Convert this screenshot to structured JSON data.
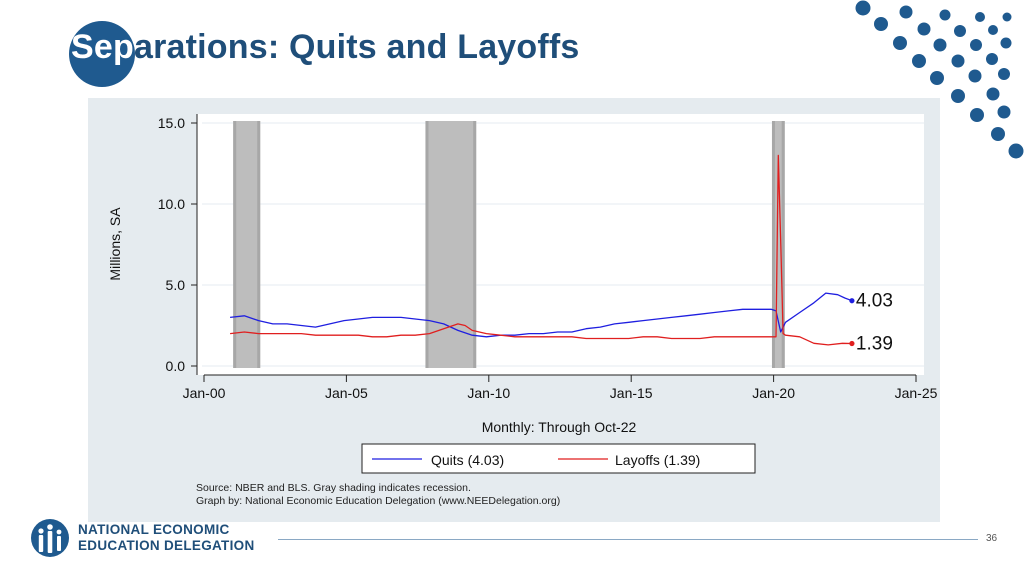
{
  "slide": {
    "title_accent": "Sep",
    "title_rest": "arations: Quits and Layoffs",
    "page_number": "36",
    "accent_color": "#1f5a8f",
    "title_color": "#1f4e79"
  },
  "logo": {
    "line1": "NATIONAL ECONOMIC",
    "line2": "EDUCATION DELEGATION",
    "icon": "people-columns-icon"
  },
  "chart_data": {
    "type": "line",
    "ylabel": "Millions, SA",
    "xlabel": "Monthly: Through Oct-22",
    "ylim": [
      0,
      15
    ],
    "xlim": [
      2000,
      2025
    ],
    "y_ticks": [
      "0.0",
      "5.0",
      "10.0",
      "15.0"
    ],
    "x_ticks": [
      "Jan-00",
      "Jan-05",
      "Jan-10",
      "Jan-15",
      "Jan-20",
      "Jan-25"
    ],
    "grid": true,
    "legend_position": "bottom",
    "recessions": [
      {
        "start": "Mar-01",
        "end": "Nov-01"
      },
      {
        "start": "Dec-07",
        "end": "Jun-09"
      },
      {
        "start": "Feb-20",
        "end": "Apr-20"
      }
    ],
    "source_note": "Source: NBER and BLS. Gray shading indicates recession.",
    "graph_by": "Graph by: National Economic Education Delegation (www.NEEDelegation.org)",
    "series": [
      {
        "name": "Quits (4.03)",
        "color": "#1f1fe0",
        "end_label": "4.03",
        "points": [
          [
            "Dec-00",
            3.0
          ],
          [
            "Jun-01",
            3.1
          ],
          [
            "Dec-01",
            2.8
          ],
          [
            "Jun-02",
            2.6
          ],
          [
            "Dec-02",
            2.6
          ],
          [
            "Jun-03",
            2.5
          ],
          [
            "Dec-03",
            2.4
          ],
          [
            "Jun-04",
            2.6
          ],
          [
            "Dec-04",
            2.8
          ],
          [
            "Jun-05",
            2.9
          ],
          [
            "Dec-05",
            3.0
          ],
          [
            "Jun-06",
            3.0
          ],
          [
            "Dec-06",
            3.0
          ],
          [
            "Jun-07",
            2.9
          ],
          [
            "Dec-07",
            2.8
          ],
          [
            "Jun-08",
            2.6
          ],
          [
            "Dec-08",
            2.2
          ],
          [
            "Jun-09",
            1.9
          ],
          [
            "Dec-09",
            1.8
          ],
          [
            "Jun-10",
            1.9
          ],
          [
            "Dec-10",
            1.9
          ],
          [
            "Jun-11",
            2.0
          ],
          [
            "Dec-11",
            2.0
          ],
          [
            "Jun-12",
            2.1
          ],
          [
            "Dec-12",
            2.1
          ],
          [
            "Jun-13",
            2.3
          ],
          [
            "Dec-13",
            2.4
          ],
          [
            "Jun-14",
            2.6
          ],
          [
            "Dec-14",
            2.7
          ],
          [
            "Jun-15",
            2.8
          ],
          [
            "Dec-15",
            2.9
          ],
          [
            "Jun-16",
            3.0
          ],
          [
            "Dec-16",
            3.1
          ],
          [
            "Jun-17",
            3.2
          ],
          [
            "Dec-17",
            3.3
          ],
          [
            "Jun-18",
            3.4
          ],
          [
            "Dec-18",
            3.5
          ],
          [
            "Jun-19",
            3.5
          ],
          [
            "Dec-19",
            3.5
          ],
          [
            "Feb-20",
            3.4
          ],
          [
            "Apr-20",
            2.1
          ],
          [
            "Jun-20",
            2.7
          ],
          [
            "Dec-20",
            3.3
          ],
          [
            "Jun-21",
            3.9
          ],
          [
            "Nov-21",
            4.5
          ],
          [
            "Apr-22",
            4.4
          ],
          [
            "Jul-22",
            4.2
          ],
          [
            "Oct-22",
            4.03
          ]
        ]
      },
      {
        "name": "Layoffs (1.39)",
        "color": "#e01f1f",
        "end_label": "1.39",
        "points": [
          [
            "Dec-00",
            2.0
          ],
          [
            "Jun-01",
            2.1
          ],
          [
            "Dec-01",
            2.0
          ],
          [
            "Jun-02",
            2.0
          ],
          [
            "Dec-02",
            2.0
          ],
          [
            "Jun-03",
            2.0
          ],
          [
            "Dec-03",
            1.9
          ],
          [
            "Jun-04",
            1.9
          ],
          [
            "Dec-04",
            1.9
          ],
          [
            "Jun-05",
            1.9
          ],
          [
            "Dec-05",
            1.8
          ],
          [
            "Jun-06",
            1.8
          ],
          [
            "Dec-06",
            1.9
          ],
          [
            "Jun-07",
            1.9
          ],
          [
            "Dec-07",
            2.0
          ],
          [
            "Jun-08",
            2.3
          ],
          [
            "Dec-08",
            2.6
          ],
          [
            "Mar-09",
            2.5
          ],
          [
            "Jun-09",
            2.2
          ],
          [
            "Dec-09",
            2.0
          ],
          [
            "Jun-10",
            1.9
          ],
          [
            "Dec-10",
            1.8
          ],
          [
            "Jun-11",
            1.8
          ],
          [
            "Dec-11",
            1.8
          ],
          [
            "Jun-12",
            1.8
          ],
          [
            "Dec-12",
            1.8
          ],
          [
            "Jun-13",
            1.7
          ],
          [
            "Dec-13",
            1.7
          ],
          [
            "Jun-14",
            1.7
          ],
          [
            "Dec-14",
            1.7
          ],
          [
            "Jun-15",
            1.8
          ],
          [
            "Dec-15",
            1.8
          ],
          [
            "Jun-16",
            1.7
          ],
          [
            "Dec-16",
            1.7
          ],
          [
            "Jun-17",
            1.7
          ],
          [
            "Dec-17",
            1.8
          ],
          [
            "Jun-18",
            1.8
          ],
          [
            "Dec-18",
            1.8
          ],
          [
            "Jun-19",
            1.8
          ],
          [
            "Feb-20",
            1.8
          ],
          [
            "Mar-20",
            13.0
          ],
          [
            "Apr-20",
            7.7
          ],
          [
            "May-20",
            2.0
          ],
          [
            "Jun-20",
            1.9
          ],
          [
            "Dec-20",
            1.8
          ],
          [
            "Jun-21",
            1.4
          ],
          [
            "Dec-21",
            1.3
          ],
          [
            "Jun-22",
            1.4
          ],
          [
            "Oct-22",
            1.39
          ]
        ]
      }
    ]
  }
}
